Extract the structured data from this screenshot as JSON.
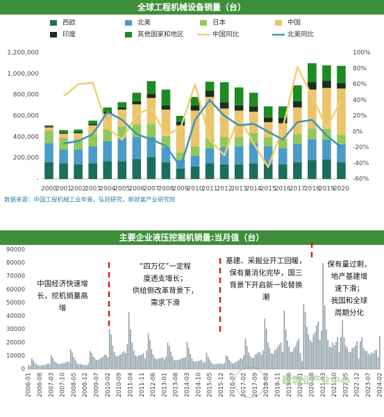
{
  "chart_data": [
    {
      "type": "bar",
      "stacked": true,
      "title": "全球工程机械设备销量（台）",
      "source": "数据来源：中国工程机械工业年鉴，弘则研究，新财富产业研究院",
      "categories": [
        "2000",
        "2001",
        "2002",
        "2003",
        "2004",
        "2005",
        "2006",
        "2007",
        "2008",
        "2009",
        "2010",
        "2011",
        "2012",
        "2013",
        "2014",
        "2015",
        "2016",
        "2017",
        "2018",
        "2019",
        "2020"
      ],
      "series": [
        {
          "name": "西欧",
          "color": "#1c6e5c",
          "values": [
            160000,
            150000,
            140000,
            150000,
            170000,
            170000,
            190000,
            210000,
            160000,
            100000,
            120000,
            150000,
            140000,
            140000,
            150000,
            140000,
            140000,
            160000,
            180000,
            185000,
            160000
          ]
        },
        {
          "name": "北美",
          "color": "#4a9cc6",
          "values": [
            180000,
            130000,
            140000,
            160000,
            190000,
            220000,
            210000,
            190000,
            140000,
            80000,
            100000,
            140000,
            160000,
            170000,
            190000,
            170000,
            150000,
            175000,
            200000,
            190000,
            170000
          ]
        },
        {
          "name": "日本",
          "color": "#92c75c",
          "values": [
            120000,
            110000,
            100000,
            110000,
            110000,
            110000,
            120000,
            120000,
            110000,
            70000,
            90000,
            90000,
            100000,
            90000,
            100000,
            90000,
            90000,
            95000,
            100000,
            100000,
            90000
          ]
        },
        {
          "name": "中国",
          "color": "#eac46c",
          "values": [
            30000,
            40000,
            55000,
            90000,
            150000,
            160000,
            190000,
            250000,
            250000,
            260000,
            340000,
            400000,
            270000,
            250000,
            200000,
            140000,
            150000,
            250000,
            370000,
            390000,
            440000
          ]
        },
        {
          "name": "印度",
          "color": "#1a2f20",
          "values": [
            10000,
            10000,
            10000,
            15000,
            20000,
            20000,
            30000,
            40000,
            40000,
            35000,
            50000,
            60000,
            60000,
            50000,
            50000,
            45000,
            50000,
            60000,
            70000,
            70000,
            50000
          ]
        },
        {
          "name": "其他国家和地区",
          "color": "#1d8a22",
          "values": [
            10000,
            25000,
            25000,
            30000,
            40000,
            50000,
            80000,
            120000,
            150000,
            55000,
            80000,
            85000,
            190000,
            170000,
            130000,
            105000,
            110000,
            150000,
            180000,
            145000,
            165000
          ]
        },
        {
          "name": "中国同比",
          "color": "#f0cf72",
          "type": "line",
          "axis": "y2",
          "values": [
            null,
            45,
            60,
            62,
            5,
            -10,
            22,
            30,
            -5,
            5,
            60,
            -10,
            -30,
            20,
            -15,
            -45,
            5,
            82,
            45,
            5,
            40
          ]
        },
        {
          "name": "北美同比",
          "color": "#3f96b4",
          "type": "line",
          "axis": "y2",
          "values": [
            null,
            -15,
            -12,
            -3,
            25,
            15,
            -3,
            -10,
            -18,
            -45,
            15,
            40,
            20,
            8,
            10,
            0,
            -10,
            12,
            15,
            -5,
            -20
          ]
        }
      ],
      "ylim": [
        0,
        1200000
      ],
      "yticks": [
        {
          "value": 0,
          "label": "-"
        },
        {
          "value": 200000,
          "label": "200,000"
        },
        {
          "value": 400000,
          "label": "400,000"
        },
        {
          "value": 600000,
          "label": "600,000"
        },
        {
          "value": 800000,
          "label": "800,000"
        },
        {
          "value": 1000000,
          "label": "1,000,000"
        },
        {
          "value": 1200000,
          "label": "1,200,000"
        }
      ],
      "y2lim": [
        -60,
        100
      ],
      "y2ticks": [
        {
          "value": -60,
          "label": "-60%"
        },
        {
          "value": -40,
          "label": "-40%"
        },
        {
          "value": -20,
          "label": "-20%"
        },
        {
          "value": 0,
          "label": "0%"
        },
        {
          "value": 20,
          "label": "20%"
        },
        {
          "value": 40,
          "label": "40%"
        },
        {
          "value": 60,
          "label": "60%"
        },
        {
          "value": 80,
          "label": "80%"
        },
        {
          "value": 100,
          "label": "100%"
        }
      ],
      "legend": "top"
    },
    {
      "type": "bar",
      "title": "主要企业液压挖掘机销量:当月值（台）",
      "color": "#8e9fa8",
      "watermark": "建筑业产业中心",
      "categories": [
        "2006-01",
        null,
        null,
        null,
        null,
        null,
        null,
        "2006-08",
        null,
        null,
        null,
        null,
        null,
        null,
        "2007-03",
        null,
        null,
        null,
        null,
        null,
        null,
        "2007-10",
        null,
        null,
        null,
        null,
        null,
        null,
        "2008-05",
        null,
        null,
        null,
        null,
        null,
        null,
        "2008-12",
        null,
        null,
        null,
        null,
        null,
        null,
        "2009-07",
        null,
        null,
        null,
        null,
        null,
        null,
        "2010-02",
        null,
        null,
        null,
        null,
        null,
        null,
        "2010-09",
        null,
        null,
        null,
        null,
        null,
        null,
        "2011-04",
        null,
        null,
        null,
        null,
        null,
        null,
        "2011-11",
        null,
        null,
        null,
        null,
        null,
        null,
        "2012-06",
        null,
        null,
        null,
        null,
        null,
        null,
        "2013-01",
        null,
        null,
        null,
        null,
        null,
        null,
        "2013-08",
        null,
        null,
        null,
        null,
        null,
        null,
        "2014-03",
        null,
        null,
        null,
        null,
        null,
        null,
        "2014-10",
        null,
        null,
        null,
        null,
        null,
        null,
        "2015-05",
        null,
        null,
        null,
        null,
        null,
        null,
        "2015-12",
        null,
        null,
        null,
        null,
        null,
        null,
        "2016-07",
        null,
        null,
        null,
        null,
        null,
        null,
        "2017-02",
        null,
        null,
        null,
        null,
        null,
        null,
        "2017-09",
        null,
        null,
        null,
        null,
        null,
        null,
        "2018-04",
        null,
        null,
        null,
        null,
        null,
        null,
        "2018-11",
        null,
        null,
        null,
        null,
        null,
        null,
        "2019-06",
        null,
        null,
        null,
        null,
        null,
        null,
        "2020-01",
        null,
        null,
        null,
        null,
        null,
        null,
        "2020-08",
        null,
        null,
        null,
        null,
        null,
        null,
        "2021-03",
        null,
        null,
        null,
        null,
        null,
        null,
        "2021-10",
        null,
        null,
        null,
        null,
        null,
        null,
        "2022-05",
        null,
        null,
        null,
        null,
        null,
        null,
        "2022-12",
        null,
        null,
        null,
        null,
        null,
        null,
        "2023-07",
        null,
        null,
        null,
        null,
        null,
        null,
        "2024-02"
      ],
      "values": [
        3000,
        2500,
        8000,
        6500,
        4500,
        3500,
        2800,
        2600,
        3000,
        3000,
        3200,
        3500,
        4500,
        3800,
        10500,
        8500,
        6000,
        5000,
        4000,
        3800,
        4200,
        4300,
        4800,
        5000,
        6000,
        5000,
        15000,
        12500,
        9000,
        6500,
        4500,
        3800,
        4000,
        3500,
        3000,
        3200,
        3000,
        4500,
        13500,
        12000,
        9500,
        8000,
        7000,
        7000,
        8000,
        8500,
        9500,
        11000,
        10500,
        9000,
        30000,
        26000,
        18000,
        13000,
        10000,
        9500,
        10500,
        11000,
        12500,
        13500,
        12000,
        19000,
        43000,
        30000,
        20000,
        14000,
        10500,
        9500,
        10500,
        10500,
        11000,
        12000,
        8000,
        14000,
        27000,
        22000,
        15000,
        11000,
        8500,
        7500,
        8000,
        8000,
        8500,
        9000,
        7500,
        9500,
        20000,
        17500,
        13000,
        9500,
        7000,
        6500,
        7000,
        7000,
        7500,
        8500,
        8500,
        9000,
        20500,
        16000,
        11500,
        8000,
        6000,
        5500,
        6000,
        6000,
        6500,
        7000,
        5000,
        5500,
        12500,
        9500,
        7000,
        5000,
        3800,
        3500,
        4000,
        4000,
        4000,
        4500,
        3500,
        4500,
        10500,
        9500,
        7000,
        5500,
        4500,
        4500,
        5500,
        6000,
        7000,
        8500,
        7500,
        10500,
        23000,
        17500,
        12500,
        10000,
        8500,
        8500,
        11000,
        11500,
        12500,
        13000,
        11000,
        14000,
        38000,
        30500,
        20000,
        16000,
        12000,
        11500,
        14000,
        15000,
        17000,
        18500,
        20000,
        13000,
        44000,
        30000,
        21500,
        17000,
        13000,
        13000,
        16000,
        17500,
        21000,
        23000,
        12000,
        6000,
        49000,
        43000,
        32000,
        26000,
        22000,
        20500,
        26000,
        28000,
        33000,
        36000,
        22000,
        29000,
        80000,
        48000,
        30000,
        22000,
        17000,
        16500,
        20000,
        18000,
        20500,
        24000,
        13000,
        24000,
        37000,
        24000,
        17500,
        16000,
        13000,
        13000,
        16000,
        16500,
        18000,
        21000,
        7900,
        21000,
        24000,
        16000,
        14000,
        13500,
        11500,
        11000,
        12500,
        12000,
        14000,
        14500,
        9000,
        25000
      ],
      "ylim": [
        0,
        90000
      ],
      "yticks": [
        0,
        10000,
        20000,
        30000,
        40000,
        50000,
        60000,
        70000,
        80000,
        90000
      ],
      "annotations": [
        [
          "中国经济快速增",
          "长，挖机销量高",
          "增"
        ],
        [
          "“四万亿”一定程",
          "度透支增长；",
          "供给侧改革背景下，",
          "需求下滑"
        ],
        [
          "基建、采掘业开工回暖，",
          "保有量消化完毕，国三",
          "背景下开启新一轮替换",
          "潮"
        ],
        [
          "保有量过剩，",
          "地产基建增",
          "速下滑；",
          "我国和全球",
          "周期分化"
        ]
      ]
    }
  ]
}
